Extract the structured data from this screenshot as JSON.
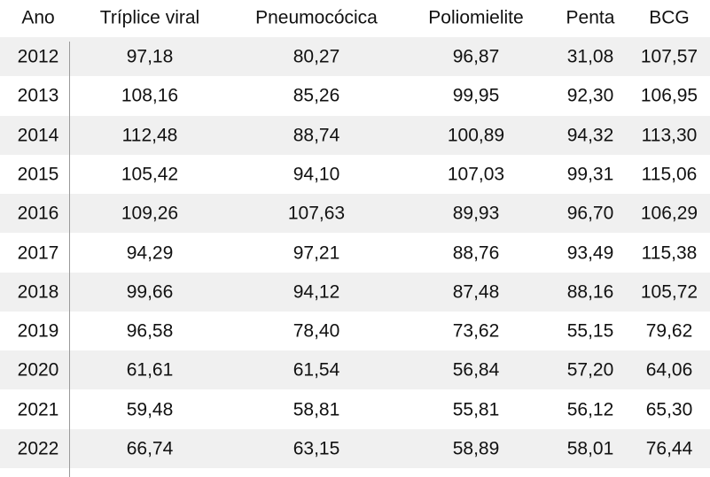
{
  "chart_data": {
    "type": "table",
    "columns": [
      "Ano",
      "Tríplice viral",
      "Pneumocócica",
      "Poliomielite",
      "Penta",
      "BCG"
    ],
    "rows": [
      [
        "2012",
        "97,18",
        "80,27",
        "96,87",
        "31,08",
        "107,57"
      ],
      [
        "2013",
        "108,16",
        "85,26",
        "99,95",
        "92,30",
        "106,95"
      ],
      [
        "2014",
        "112,48",
        "88,74",
        "100,89",
        "94,32",
        "113,30"
      ],
      [
        "2015",
        "105,42",
        "94,10",
        "107,03",
        "99,31",
        "115,06"
      ],
      [
        "2016",
        "109,26",
        "107,63",
        "89,93",
        "96,70",
        "106,29"
      ],
      [
        "2017",
        "94,29",
        "97,21",
        "88,76",
        "93,49",
        "115,38"
      ],
      [
        "2018",
        "99,66",
        "94,12",
        "87,48",
        "88,16",
        "105,72"
      ],
      [
        "2019",
        "96,58",
        "78,40",
        "73,62",
        "55,15",
        "79,62"
      ],
      [
        "2020",
        "61,61",
        "61,54",
        "56,84",
        "57,20",
        "64,06"
      ],
      [
        "2021",
        "59,48",
        "58,81",
        "55,81",
        "56,12",
        "65,30"
      ],
      [
        "2022",
        "66,74",
        "63,15",
        "58,89",
        "58,01",
        "76,44"
      ]
    ],
    "colors": {
      "row_shade": "#f0f0f0",
      "rule": "#9a9a9a",
      "text": "#111111"
    }
  }
}
